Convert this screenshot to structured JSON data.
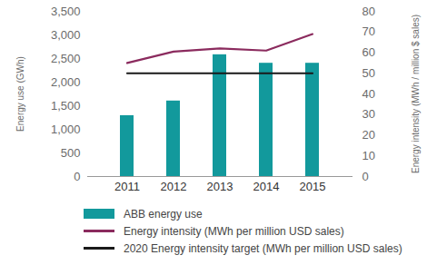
{
  "chart_data": {
    "type": "bar",
    "categories": [
      "2011",
      "2012",
      "2013",
      "2014",
      "2015"
    ],
    "series": [
      {
        "name": "ABB energy use",
        "type": "bar",
        "color": "#12999c",
        "values": [
          1290,
          1600,
          2580,
          2400,
          2400
        ]
      },
      {
        "name": "Energy intensity (MWh per million USD sales)",
        "type": "line",
        "axis": "y2",
        "color": "#8b2b5e",
        "values": [
          55,
          60.5,
          62,
          61,
          69
        ]
      },
      {
        "name": "2020 Energy intensity target (MWh per million USD sales)",
        "type": "line",
        "axis": "y2",
        "color": "#1a1a1a",
        "values": [
          50,
          50,
          50,
          50,
          50
        ]
      }
    ],
    "ylabel": "Energy use (GWh)",
    "y2label": "Energy intensity (MWh / million $ sales)",
    "ylim": [
      0,
      3500
    ],
    "yticks": [
      0,
      500,
      {
        "value": 1000,
        "label": "1,000"
      },
      {
        "value": 1500,
        "label": "1,500"
      },
      {
        "value": 2000,
        "label": "2,000"
      },
      {
        "value": 2500,
        "label": "2,500"
      },
      {
        "value": 3000,
        "label": "3,000"
      },
      {
        "value": 3500,
        "label": "3,500"
      }
    ],
    "y2lim": [
      0,
      80
    ],
    "y2ticks": [
      0,
      10,
      20,
      30,
      40,
      50,
      60,
      70,
      80
    ],
    "legend": "bottom"
  }
}
